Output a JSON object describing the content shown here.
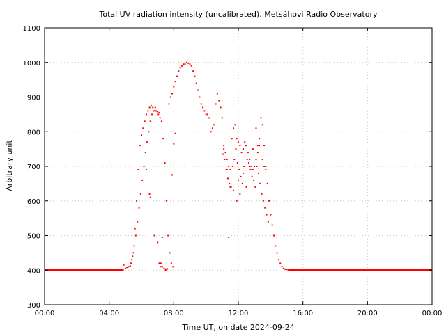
{
  "chart_data": {
    "type": "scatter",
    "title": "Total UV radiation intensity (uncalibrated). Metsähovi Radio Observatory",
    "xlabel": "Time UT, on date 2024-09-24",
    "ylabel": "Arbitrary unit",
    "xlim": [
      0,
      24
    ],
    "ylim": [
      300,
      1100
    ],
    "xticks": [
      0,
      4,
      8,
      12,
      16,
      20,
      24
    ],
    "xtick_labels": [
      "00:00",
      "04:00",
      "08:00",
      "12:00",
      "16:00",
      "20:00",
      "00:00"
    ],
    "yticks": [
      300,
      400,
      500,
      600,
      700,
      800,
      900,
      1000,
      1100
    ],
    "ytick_labels": [
      "300",
      "400",
      "500",
      "600",
      "700",
      "800",
      "900",
      "1000",
      "1100"
    ],
    "grid": true,
    "marker_color": "#ff0000",
    "series": [
      {
        "x": [
          4.9,
          5.0,
          5.1,
          5.2,
          5.3,
          5.4,
          5.5,
          5.6,
          5.7,
          5.8,
          5.9,
          6.0,
          6.1,
          6.2,
          6.3,
          6.4,
          6.5,
          6.6,
          6.7,
          6.8,
          6.9,
          7.0,
          7.1,
          7.2,
          7.3,
          7.4,
          7.5,
          7.6,
          7.7,
          7.8,
          7.9,
          8.0,
          8.1,
          8.2,
          8.3,
          8.4,
          8.5,
          8.6,
          8.7,
          8.8,
          8.9,
          9.0,
          9.1,
          9.2,
          9.3,
          9.4,
          9.5,
          9.6,
          9.7,
          9.8,
          9.9,
          10.0,
          10.1,
          10.2,
          10.3,
          10.4,
          10.5,
          10.6,
          10.7,
          10.8,
          10.9,
          11.0,
          11.1,
          11.2,
          11.3,
          11.4,
          11.5,
          11.6,
          11.7,
          11.8,
          11.9,
          12.0,
          12.1,
          12.2,
          12.3,
          12.4,
          12.5,
          12.6,
          12.7,
          12.8,
          12.9,
          13.0,
          13.1,
          13.2,
          13.3,
          13.4,
          13.5,
          13.6,
          13.7,
          13.8,
          13.9,
          14.0,
          14.1,
          14.2,
          14.3,
          14.4,
          14.5,
          14.6,
          14.7,
          14.8,
          14.9,
          15.0,
          15.1,
          5.35,
          5.45,
          5.55,
          5.65,
          5.75,
          5.85,
          5.95,
          6.05,
          6.15,
          6.25,
          6.35,
          6.45,
          6.55,
          6.65,
          6.75,
          6.85,
          6.95,
          7.05,
          7.15,
          7.25,
          7.35,
          7.45,
          7.55,
          7.65,
          7.75,
          7.85,
          7.95,
          6.3,
          6.5,
          6.55,
          6.8,
          7.0,
          7.1,
          7.2,
          7.3,
          7.5,
          7.9,
          8.0,
          8.1,
          11.05,
          11.15,
          11.25,
          11.35,
          11.45,
          11.55,
          11.65,
          11.75,
          11.85,
          11.95,
          12.05,
          12.15,
          12.25,
          12.35,
          12.45,
          12.55,
          12.65,
          12.75,
          12.85,
          12.95,
          13.05,
          13.15,
          13.25,
          13.35,
          13.45,
          13.55,
          13.65,
          13.75,
          13.85,
          11.1,
          11.3,
          11.5,
          11.7,
          11.9,
          12.1,
          12.3,
          12.5,
          12.7,
          12.9,
          13.1,
          13.3,
          13.5,
          13.7,
          11.4,
          12.0,
          13.2,
          13.6
        ],
        "y": [
          415,
          405,
          408,
          410,
          412,
          430,
          450,
          520,
          600,
          690,
          760,
          790,
          810,
          830,
          850,
          860,
          870,
          875,
          870,
          860,
          860,
          858,
          855,
          420,
          410,
          405,
          403,
          404,
          880,
          900,
          910,
          930,
          945,
          960,
          975,
          985,
          990,
          995,
          995,
          1000,
          998,
          995,
          990,
          975,
          960,
          940,
          920,
          900,
          880,
          870,
          860,
          850,
          850,
          840,
          800,
          810,
          820,
          880,
          910,
          890,
          870,
          840,
          760,
          740,
          720,
          700,
          690,
          780,
          810,
          820,
          780,
          770,
          760,
          740,
          750,
          770,
          760,
          740,
          720,
          700,
          690,
          700,
          720,
          740,
          780,
          840,
          820,
          760,
          700,
          650,
          600,
          560,
          530,
          500,
          470,
          450,
          430,
          420,
          410,
          405,
          403,
          402,
          401,
          420,
          440,
          470,
          500,
          540,
          580,
          620,
          660,
          700,
          740,
          770,
          800,
          830,
          850,
          860,
          870,
          860,
          850,
          840,
          830,
          780,
          710,
          600,
          500,
          450,
          420,
          410,
          690,
          620,
          610,
          500,
          480,
          420,
          410,
          495,
          400,
          675,
          765,
          795,
          735,
          720,
          690,
          665,
          650,
          640,
          700,
          720,
          750,
          710,
          690,
          670,
          650,
          700,
          760,
          720,
          710,
          690,
          670,
          660,
          640,
          700,
          680,
          650,
          620,
          600,
          580,
          560,
          540,
          750,
          690,
          640,
          630,
          600,
          620,
          680,
          640,
          700,
          750,
          810,
          760,
          720,
          690,
          495,
          660,
          760,
          700
        ]
      }
    ],
    "baseline": [
      {
        "x_start": 0,
        "x_end": 4.9,
        "y": 400
      },
      {
        "x_start": 15.1,
        "x_end": 24,
        "y": 400
      }
    ]
  }
}
